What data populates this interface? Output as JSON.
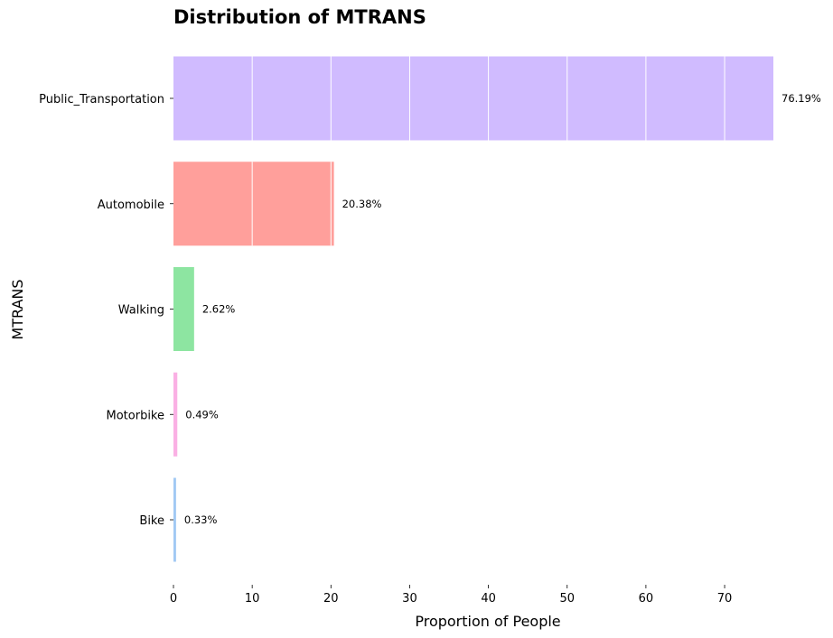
{
  "chart_data": {
    "type": "bar",
    "orientation": "horizontal",
    "title": "Distribution of MTRANS",
    "xlabel": "Proportion of People",
    "ylabel": "MTRANS",
    "categories": [
      "Public_Transportation",
      "Automobile",
      "Walking",
      "Motorbike",
      "Bike"
    ],
    "values": [
      76.19,
      20.38,
      2.62,
      0.49,
      0.33
    ],
    "data_labels": [
      "76.19%",
      "20.38%",
      "2.62%",
      "0.49%",
      "0.33%"
    ],
    "colors": [
      "#d0bbff",
      "#ff9f9b",
      "#8de5a1",
      "#fab0e4",
      "#a1c9f4"
    ],
    "xlim": [
      0,
      76.19
    ],
    "xticks": [
      0,
      10,
      20,
      30,
      40,
      50,
      60,
      70
    ],
    "grid": "vertical-white-on-bars",
    "legend": "none"
  }
}
